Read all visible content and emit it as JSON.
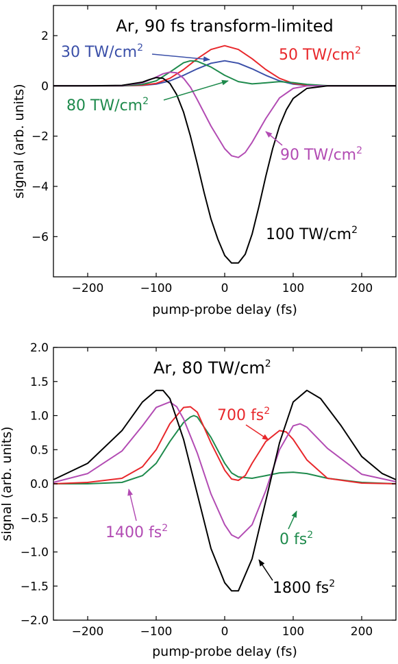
{
  "chart_data": [
    {
      "type": "line",
      "title": "Ar, 90 fs transform-limited",
      "xlabel": "pump-probe delay (fs)",
      "ylabel": "signal (arb. units)",
      "xlim": [
        -250,
        250
      ],
      "ylim": [
        -7.6,
        3.2
      ],
      "xticks": [
        -200,
        -100,
        0,
        100,
        200
      ],
      "yticks": [
        2,
        0,
        -2,
        -4,
        -6
      ],
      "xtick_labels": [
        "−200",
        "−100",
        "0",
        "100",
        "200"
      ],
      "ytick_labels": [
        "2",
        "0",
        "−2",
        "−4",
        "−6"
      ],
      "grid": false,
      "series": [
        {
          "name": "30 TW/cm2",
          "color": "#3a4fa8",
          "x": [
            -250,
            -200,
            -150,
            -120,
            -100,
            -80,
            -60,
            -40,
            -20,
            0,
            20,
            40,
            60,
            80,
            100,
            120,
            150,
            200,
            250
          ],
          "y": [
            0,
            0,
            0,
            0.02,
            0.07,
            0.2,
            0.42,
            0.68,
            0.9,
            1.0,
            0.9,
            0.68,
            0.42,
            0.2,
            0.07,
            0.02,
            0,
            0,
            0
          ]
        },
        {
          "name": "50 TW/cm2",
          "color": "#e8272b",
          "x": [
            -250,
            -200,
            -150,
            -120,
            -100,
            -80,
            -60,
            -40,
            -20,
            0,
            20,
            40,
            60,
            80,
            100,
            120,
            150,
            200,
            250
          ],
          "y": [
            0,
            0,
            0,
            0.03,
            0.1,
            0.3,
            0.65,
            1.08,
            1.45,
            1.6,
            1.45,
            1.08,
            0.65,
            0.3,
            0.1,
            0.03,
            0,
            0,
            0
          ]
        },
        {
          "name": "80 TW/cm2",
          "color": "#1e8a4c",
          "x": [
            -250,
            -200,
            -150,
            -120,
            -100,
            -80,
            -60,
            -50,
            -40,
            -20,
            0,
            20,
            40,
            60,
            80,
            100,
            120,
            150,
            200,
            250
          ],
          "y": [
            0,
            0,
            0,
            0.06,
            0.2,
            0.55,
            0.92,
            1.0,
            0.98,
            0.75,
            0.42,
            0.17,
            0.08,
            0.12,
            0.17,
            0.13,
            0.06,
            0.01,
            0,
            0
          ]
        },
        {
          "name": "90 TW/cm2",
          "color": "#b24bb3",
          "x": [
            -250,
            -200,
            -150,
            -120,
            -100,
            -90,
            -80,
            -70,
            -60,
            -50,
            -40,
            -20,
            0,
            10,
            20,
            30,
            40,
            60,
            80,
            100,
            120,
            150,
            200,
            250
          ],
          "y": [
            0,
            0,
            0.01,
            0.12,
            0.35,
            0.48,
            0.55,
            0.52,
            0.3,
            -0.05,
            -0.55,
            -1.6,
            -2.5,
            -2.78,
            -2.85,
            -2.65,
            -2.25,
            -1.3,
            -0.48,
            -0.1,
            0,
            0,
            0,
            0
          ]
        },
        {
          "name": "100 TW/cm2",
          "color": "#000000",
          "x": [
            -250,
            -200,
            -150,
            -120,
            -110,
            -100,
            -90,
            -80,
            -70,
            -60,
            -50,
            -40,
            -30,
            -20,
            -10,
            0,
            10,
            20,
            30,
            40,
            50,
            60,
            70,
            80,
            90,
            100,
            120,
            150,
            170,
            200,
            250
          ],
          "y": [
            0,
            0,
            0.02,
            0.15,
            0.25,
            0.33,
            0.3,
            0.1,
            -0.35,
            -1.05,
            -2.0,
            -3.1,
            -4.25,
            -5.3,
            -6.1,
            -6.75,
            -7.05,
            -7.05,
            -6.7,
            -5.9,
            -4.8,
            -3.6,
            -2.5,
            -1.6,
            -0.95,
            -0.5,
            -0.1,
            0,
            0,
            0,
            0
          ]
        }
      ],
      "annotations": [
        {
          "text": "30 TW/cm",
          "sup": "2",
          "color": "#3a4fa8"
        },
        {
          "text": "50 TW/cm",
          "sup": "2",
          "color": "#e8272b"
        },
        {
          "text": "80 TW/cm",
          "sup": "2",
          "color": "#1e8a4c"
        },
        {
          "text": "90 TW/cm",
          "sup": "2",
          "color": "#b24bb3"
        },
        {
          "text": "100 TW/cm",
          "sup": "2",
          "color": "#000000"
        }
      ]
    },
    {
      "type": "line",
      "title": "Ar, 80 TW/cm",
      "title_sup": "2",
      "xlabel": "pump-probe delay (fs)",
      "ylabel": "signal (arb. units)",
      "xlim": [
        -250,
        250
      ],
      "ylim": [
        -2.0,
        2.0
      ],
      "xticks": [
        -200,
        -100,
        0,
        100,
        200
      ],
      "yticks": [
        2.0,
        1.5,
        1.0,
        0.5,
        0.0,
        -0.5,
        -1.0,
        -1.5,
        -2.0
      ],
      "xtick_labels": [
        "−200",
        "−100",
        "0",
        "100",
        "200"
      ],
      "ytick_labels": [
        "2.0",
        "1.5",
        "1.0",
        "0.5",
        "0.0",
        "−0.5",
        "−1.0",
        "−1.5",
        "−2.0"
      ],
      "grid": false,
      "series": [
        {
          "name": "0 fs2",
          "color": "#1e8a4c",
          "x": [
            -250,
            -200,
            -150,
            -120,
            -100,
            -80,
            -60,
            -50,
            -45,
            -40,
            -20,
            0,
            10,
            20,
            40,
            60,
            80,
            100,
            120,
            150,
            200,
            250
          ],
          "y": [
            0,
            0,
            0.02,
            0.12,
            0.3,
            0.62,
            0.9,
            0.98,
            1.0,
            0.98,
            0.68,
            0.3,
            0.16,
            0.1,
            0.08,
            0.12,
            0.16,
            0.17,
            0.15,
            0.08,
            0.02,
            0
          ]
        },
        {
          "name": "700 fs2",
          "color": "#e8272b",
          "x": [
            -250,
            -200,
            -150,
            -120,
            -100,
            -80,
            -60,
            -50,
            -40,
            -20,
            0,
            10,
            20,
            30,
            40,
            60,
            80,
            90,
            100,
            120,
            150,
            200,
            250
          ],
          "y": [
            0,
            0.02,
            0.08,
            0.25,
            0.5,
            0.88,
            1.12,
            1.13,
            1.05,
            0.6,
            0.2,
            0.07,
            0.05,
            0.12,
            0.3,
            0.62,
            0.78,
            0.76,
            0.65,
            0.35,
            0.08,
            0.01,
            0
          ]
        },
        {
          "name": "1400 fs2",
          "color": "#b24bb3",
          "x": [
            -250,
            -200,
            -150,
            -120,
            -100,
            -80,
            -70,
            -60,
            -40,
            -20,
            0,
            10,
            20,
            40,
            60,
            80,
            100,
            110,
            120,
            150,
            200,
            250
          ],
          "y": [
            0.02,
            0.15,
            0.48,
            0.85,
            1.12,
            1.2,
            1.13,
            0.95,
            0.45,
            -0.15,
            -0.6,
            -0.75,
            -0.8,
            -0.6,
            -0.1,
            0.5,
            0.85,
            0.88,
            0.83,
            0.52,
            0.14,
            0.03
          ]
        },
        {
          "name": "1800 fs2",
          "color": "#000000",
          "x": [
            -250,
            -200,
            -150,
            -120,
            -100,
            -90,
            -80,
            -60,
            -40,
            -20,
            0,
            10,
            20,
            40,
            60,
            80,
            100,
            120,
            140,
            170,
            200,
            230,
            250
          ],
          "y": [
            0.06,
            0.3,
            0.78,
            1.2,
            1.37,
            1.37,
            1.25,
            0.65,
            -0.15,
            -0.95,
            -1.45,
            -1.57,
            -1.57,
            -1.1,
            -0.25,
            0.6,
            1.2,
            1.37,
            1.25,
            0.85,
            0.4,
            0.15,
            0.06
          ]
        }
      ],
      "annotations": [
        {
          "text": "700 fs",
          "sup": "2",
          "color": "#e8272b"
        },
        {
          "text": "1400 fs",
          "sup": "2",
          "color": "#b24bb3"
        },
        {
          "text": "0 fs",
          "sup": "2",
          "color": "#1e8a4c"
        },
        {
          "text": "1800 fs",
          "sup": "2",
          "color": "#000000"
        }
      ]
    }
  ]
}
